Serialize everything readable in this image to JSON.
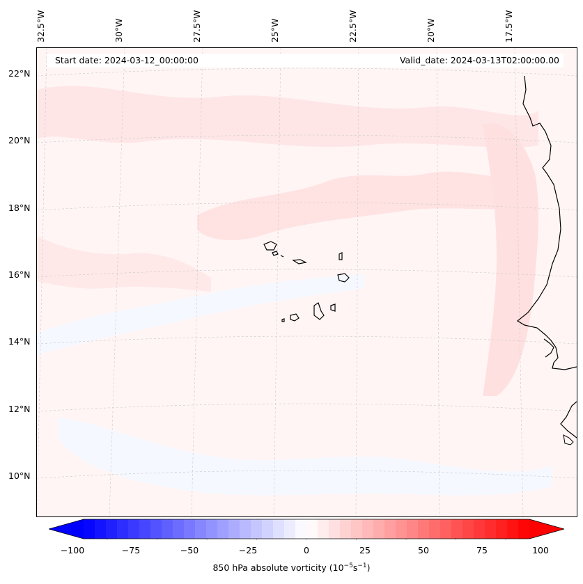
{
  "header": {
    "start_date": "Start date: 2024-03-12_00:00:00",
    "valid_date": "Valid_date: 2024-03-13T02:00:00.00"
  },
  "longitude_labels": [
    "32.5°W",
    "30°W",
    "27.5°W",
    "25°W",
    "22.5°W",
    "20°W",
    "17.5°W"
  ],
  "latitude_labels": [
    "22°N",
    "20°N",
    "18°N",
    "16°N",
    "14°N",
    "12°N",
    "10°N"
  ],
  "colorbar": {
    "label_prefix": "850 hPa absolute vorticity (10",
    "label_exp1": "−5",
    "label_mid": "s",
    "label_exp2": "−1",
    "label_suffix": ")",
    "ticks": [
      "−100",
      "−75",
      "−50",
      "−25",
      "0",
      "25",
      "50",
      "75",
      "100"
    ],
    "range": [
      -100,
      100
    ],
    "step": 5,
    "colormap": "bwr",
    "min_color": "#0000ff",
    "mid_color": "#ffffff",
    "max_color": "#ff0000"
  },
  "map": {
    "projection": "lambert-conformal",
    "lon_range_deg_west": [
      33,
      16
    ],
    "lat_range_deg_north": [
      9,
      23
    ],
    "field_background": "#fff4f4",
    "positive_anomaly_color": "#ffe0e0",
    "negative_anomaly_color": "#f5f7ff",
    "coastline_color": "#000000",
    "gridline_color": "#bbbbbb"
  }
}
